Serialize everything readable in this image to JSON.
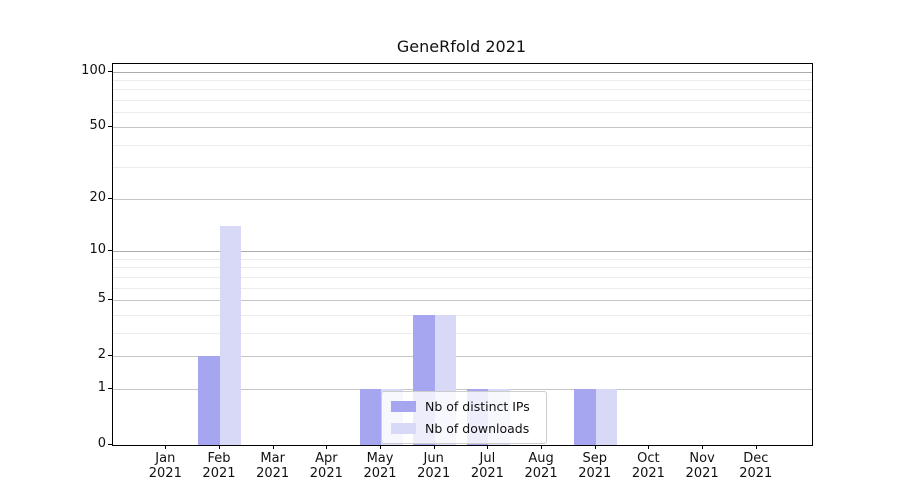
{
  "chart_data": {
    "type": "bar",
    "title": "GeneRfold 2021",
    "months": [
      "Jan",
      "Feb",
      "Mar",
      "Apr",
      "May",
      "Jun",
      "Jul",
      "Aug",
      "Sep",
      "Oct",
      "Nov",
      "Dec"
    ],
    "year": "2021",
    "series": [
      {
        "name": "Nb of distinct IPs",
        "color": "#a5a5f0",
        "values": [
          0,
          2,
          0,
          0,
          1,
          4,
          1,
          0,
          1,
          0,
          0,
          0
        ]
      },
      {
        "name": "Nb of downloads",
        "color": "#d8d8f7",
        "values": [
          0,
          14,
          0,
          0,
          1,
          4,
          1,
          0,
          1,
          0,
          0,
          0
        ]
      }
    ],
    "y_axis": {
      "scale": "log1p",
      "major_ticks": [
        0,
        1,
        2,
        5,
        10,
        20,
        50,
        100
      ],
      "minor_ticks": [
        3,
        4,
        6,
        7,
        8,
        9,
        30,
        40,
        60,
        70,
        80,
        90
      ],
      "ylim": [
        0,
        110
      ]
    },
    "legend": {
      "position": "lower center"
    },
    "grid": true
  }
}
